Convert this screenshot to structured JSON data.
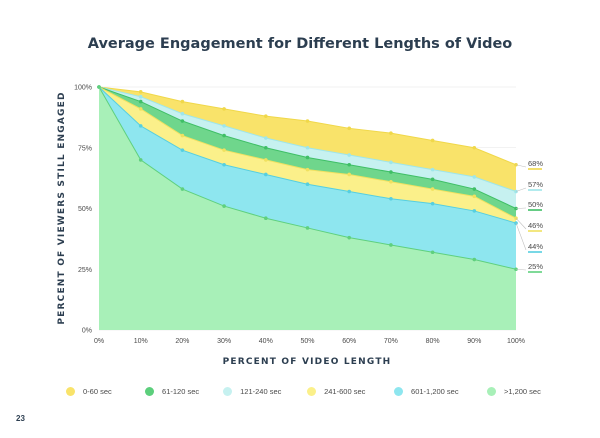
{
  "chart_data": {
    "type": "area",
    "title": "Average Engagement for Different Lengths of Video",
    "xlabel": "PERCENT OF VIDEO LENGTH",
    "ylabel": "PERCENT OF VIEWERS STILL ENGAGED",
    "x": [
      0,
      10,
      20,
      30,
      40,
      50,
      60,
      70,
      80,
      90,
      100
    ],
    "x_tick_labels": [
      "0%",
      "10%",
      "20%",
      "30%",
      "40%",
      "50%",
      "60%",
      "70%",
      "80%",
      "90%",
      "100%"
    ],
    "y_ticks": [
      0,
      25,
      50,
      75,
      100
    ],
    "y_tick_labels": [
      "0%",
      "25%",
      "50%",
      "75%",
      "100%"
    ],
    "ylim": [
      0,
      100
    ],
    "xlim": [
      0,
      100
    ],
    "grid": true,
    "legend_position": "bottom",
    "series": [
      {
        "name": "0-60 sec",
        "color": "#f9e36a",
        "line_color": "#f0d84a",
        "values": [
          100,
          98,
          94,
          91,
          88,
          86,
          83,
          81,
          78,
          75,
          68
        ],
        "end_label": "68%"
      },
      {
        "name": "121-240 sec",
        "color": "#c6f1f0",
        "line_color": "#9fe6ea",
        "values": [
          100,
          96,
          89,
          84,
          79,
          75,
          72,
          69,
          66,
          63,
          57
        ],
        "end_label": "57%"
      },
      {
        "name": "61-120 sec",
        "color": "#6fd68c",
        "line_color": "#3fbf66",
        "values": [
          100,
          94,
          86,
          80,
          75,
          71,
          68,
          65,
          62,
          58,
          50
        ],
        "end_label": "50%"
      },
      {
        "name": "241-600 sec",
        "color": "#fbf08a",
        "line_color": "#f0e160",
        "values": [
          100,
          91,
          80,
          74,
          70,
          66,
          64,
          61,
          58,
          55,
          46
        ],
        "end_label": "46%"
      },
      {
        "name": "601-1,200 sec",
        "color": "#8ee6ef",
        "line_color": "#56cfe0",
        "values": [
          100,
          84,
          74,
          68,
          64,
          60,
          57,
          54,
          52,
          49,
          44
        ],
        "end_label": "44%"
      },
      {
        "name": ">1,200 sec",
        "color": "#a8f0b8",
        "line_color": "#5fd07e",
        "values": [
          100,
          70,
          58,
          51,
          46,
          42,
          38,
          35,
          32,
          29,
          25
        ],
        "end_label": "25%"
      }
    ],
    "legend_order": [
      "0-60 sec",
      "61-120 sec",
      "121-240 sec",
      "241-600 sec",
      "601-1,200 sec",
      ">1,200 sec"
    ],
    "legend_colors": [
      "#f9e36a",
      "#5ccf7c",
      "#c6f1f0",
      "#fbf08a",
      "#8ee6ef",
      "#a8f0b8"
    ]
  },
  "page_number": "23"
}
